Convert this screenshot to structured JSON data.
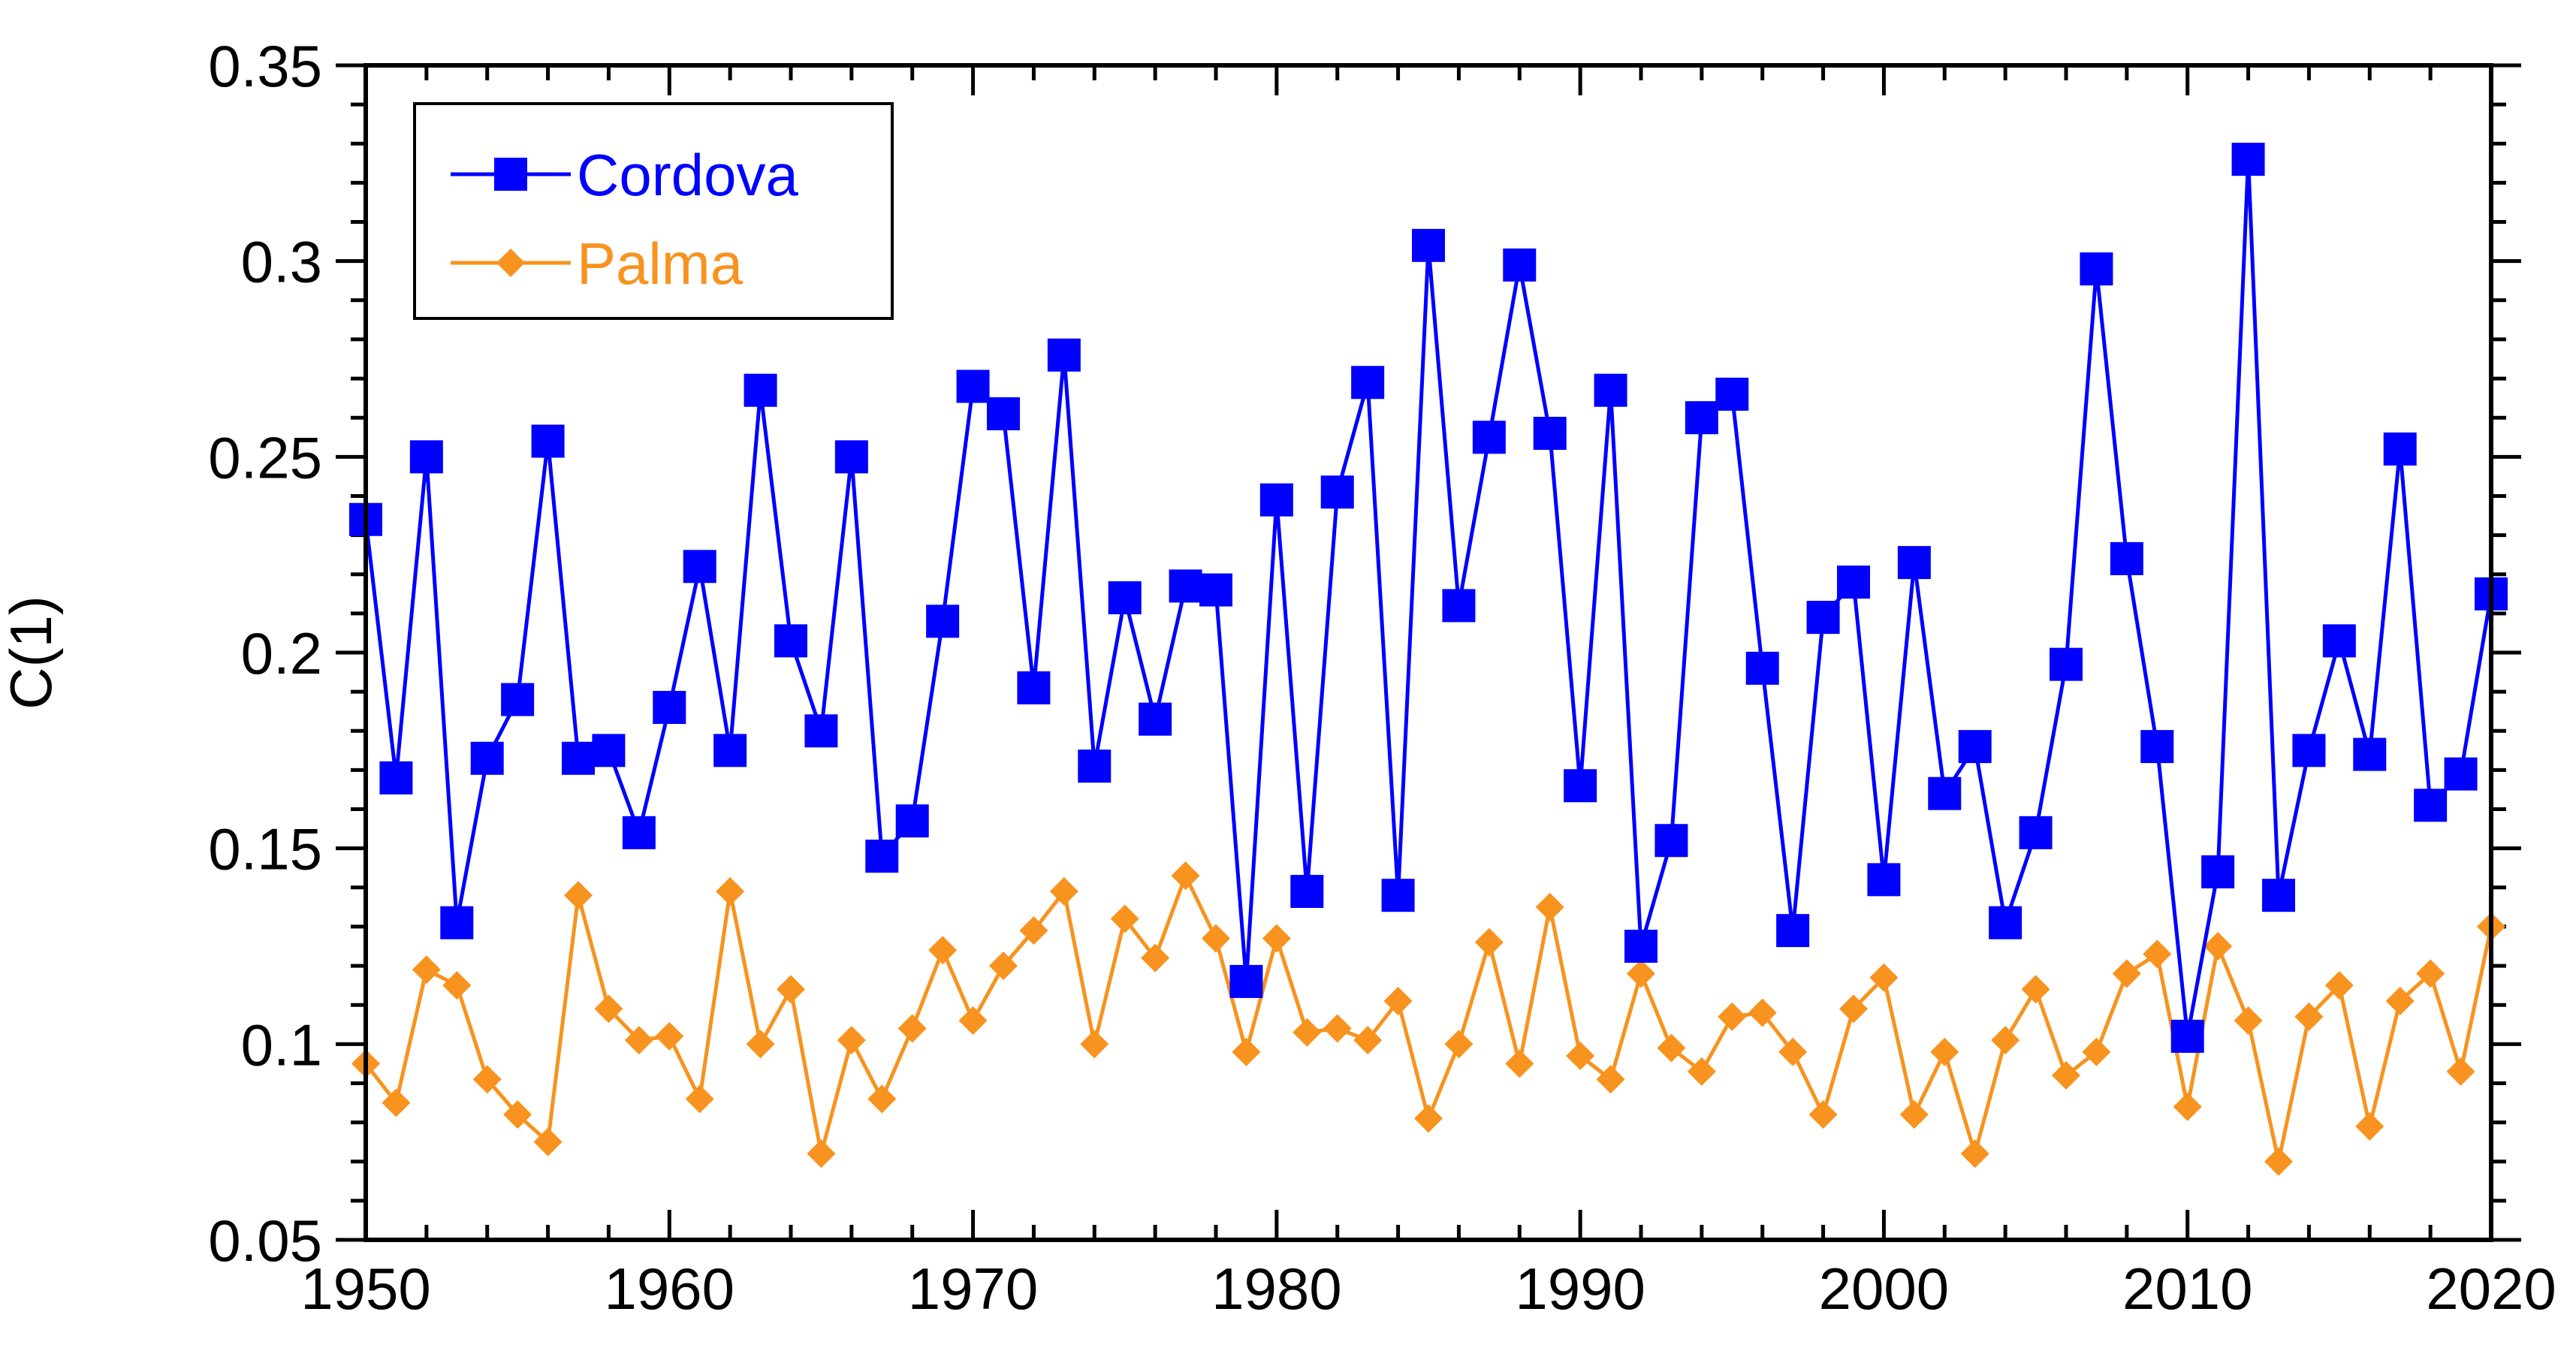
{
  "chart_data": {
    "type": "line",
    "title": "",
    "xlabel": "",
    "ylabel": "C(1)",
    "xlim": [
      1950,
      2020
    ],
    "ylim": [
      0.05,
      0.35
    ],
    "x_ticks": [
      1950,
      1960,
      1970,
      1980,
      1990,
      2000,
      2010,
      2020
    ],
    "x_tick_labels": [
      "1950",
      "1960",
      "1970",
      "1980",
      "1990",
      "2000",
      "2010",
      "2020"
    ],
    "y_ticks": [
      0.05,
      0.1,
      0.15,
      0.2,
      0.25,
      0.3,
      0.35
    ],
    "y_tick_labels": [
      "0.05",
      "0.1",
      "0.15",
      "0.2",
      "0.25",
      "0.3",
      "0.35"
    ],
    "grid": false,
    "legend_position": "top-left",
    "x": [
      1950,
      1951,
      1952,
      1953,
      1954,
      1955,
      1956,
      1957,
      1958,
      1959,
      1960,
      1961,
      1962,
      1963,
      1964,
      1965,
      1966,
      1967,
      1968,
      1969,
      1970,
      1971,
      1972,
      1973,
      1974,
      1975,
      1976,
      1977,
      1978,
      1979,
      1980,
      1981,
      1982,
      1983,
      1984,
      1985,
      1986,
      1987,
      1988,
      1989,
      1990,
      1991,
      1992,
      1993,
      1994,
      1995,
      1996,
      1997,
      1998,
      1999,
      2000,
      2001,
      2002,
      2003,
      2004,
      2005,
      2006,
      2007,
      2008,
      2009,
      2010,
      2011,
      2012,
      2013,
      2014,
      2015,
      2016,
      2017,
      2018,
      2019,
      2020
    ],
    "series": [
      {
        "name": "Cordova",
        "color": "#0000ff",
        "marker": "square",
        "values": [
          0.234,
          0.168,
          0.25,
          0.131,
          0.173,
          0.188,
          0.254,
          0.173,
          0.175,
          0.154,
          0.186,
          0.222,
          0.175,
          0.267,
          0.203,
          0.18,
          0.25,
          0.148,
          0.157,
          0.208,
          0.268,
          0.261,
          0.191,
          0.276,
          0.171,
          0.214,
          0.183,
          0.217,
          0.216,
          0.116,
          0.239,
          0.139,
          0.241,
          0.269,
          0.138,
          0.304,
          0.212,
          0.255,
          0.299,
          0.256,
          0.166,
          0.267,
          0.125,
          0.152,
          0.26,
          0.266,
          0.196,
          0.129,
          0.209,
          0.218,
          0.142,
          0.223,
          0.164,
          0.176,
          0.131,
          0.154,
          0.197,
          0.298,
          0.224,
          0.176,
          0.102,
          0.144,
          0.326,
          0.138,
          0.175,
          0.203,
          0.174,
          0.252,
          0.161,
          0.169,
          0.215
        ]
      },
      {
        "name": "Palma",
        "color": "#f7931e",
        "marker": "diamond",
        "values": [
          0.095,
          0.085,
          0.119,
          0.115,
          0.091,
          0.082,
          0.075,
          0.138,
          0.109,
          0.101,
          0.102,
          0.086,
          0.139,
          0.1,
          0.114,
          0.072,
          0.101,
          0.086,
          0.104,
          0.124,
          0.106,
          0.12,
          0.129,
          0.139,
          0.1,
          0.132,
          0.122,
          0.143,
          0.127,
          0.098,
          0.127,
          0.103,
          0.104,
          0.101,
          0.111,
          0.081,
          0.1,
          0.126,
          0.095,
          0.135,
          0.097,
          0.091,
          0.118,
          0.099,
          0.093,
          0.107,
          0.108,
          0.098,
          0.082,
          0.109,
          0.117,
          0.082,
          0.098,
          0.072,
          0.101,
          0.114,
          0.092,
          0.098,
          0.118,
          0.123,
          0.084,
          0.125,
          0.106,
          0.07,
          0.107,
          0.115,
          0.079,
          0.111,
          0.118,
          0.093,
          0.13
        ]
      }
    ]
  }
}
